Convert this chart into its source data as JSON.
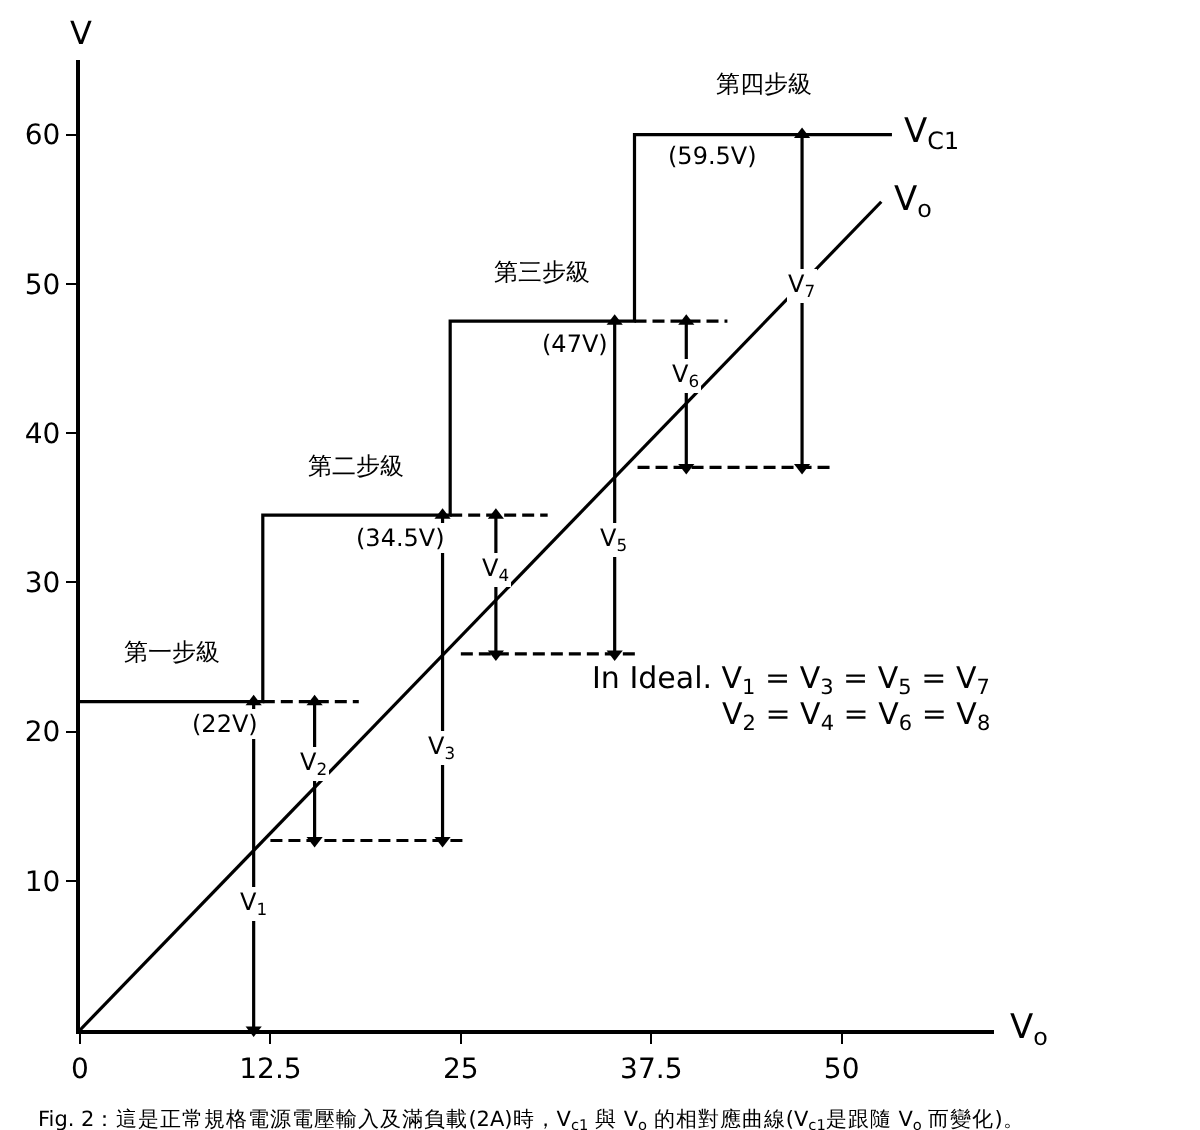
{
  "chart_data": {
    "type": "line",
    "xlabel": "V$_{o}$",
    "ylabel": "V",
    "xlim": [
      0,
      60
    ],
    "ylim": [
      0,
      65
    ],
    "xticks": [
      0,
      12.5,
      25,
      37.5,
      50
    ],
    "yticks": [
      10,
      20,
      30,
      40,
      50,
      60
    ],
    "legend": false,
    "line_style": "solid",
    "series": [
      {
        "name": "V$_{C1}$",
        "color": "#000000",
        "x": [
          0,
          12,
          12,
          24.3,
          24.3,
          36.4,
          36.4,
          53.3
        ],
        "values": [
          22,
          22,
          34.5,
          34.5,
          47.5,
          47.5,
          60,
          60
        ]
      },
      {
        "name": "V$_{o}$",
        "color": "#000000",
        "x": [
          0,
          52.6
        ],
        "values": [
          0,
          55.5
        ]
      },
      {
        "color": "#000000",
        "line_style": "dashed",
        "x": [
          12,
          18.3
        ],
        "values": [
          22,
          22
        ]
      },
      {
        "color": "#000000",
        "line_style": "dashed",
        "x": [
          12.5,
          25.3
        ],
        "values": [
          12.7,
          12.7
        ]
      },
      {
        "color": "#000000",
        "line_style": "dashed",
        "x": [
          24.3,
          30.7
        ],
        "values": [
          34.5,
          34.5
        ]
      },
      {
        "color": "#000000",
        "line_style": "dashed",
        "x": [
          25,
          36.7
        ],
        "values": [
          25.2,
          25.2
        ]
      },
      {
        "color": "#000000",
        "line_style": "dashed",
        "x": [
          36.4,
          42.5
        ],
        "values": [
          47.5,
          47.5
        ]
      },
      {
        "color": "#000000",
        "line_style": "dashed",
        "x": [
          36.6,
          49.3
        ],
        "values": [
          37.7,
          37.7
        ]
      },
      {
        "color": "#000000",
        "marker": "triangle",
        "x": [
          11.4,
          11.4
        ],
        "values": [
          22,
          0
        ]
      },
      {
        "color": "#000000",
        "marker": "triangle",
        "x": [
          15.4,
          15.4
        ],
        "values": [
          22,
          12.7
        ]
      },
      {
        "color": "#000000",
        "marker": "triangle",
        "x": [
          23.8,
          23.8
        ],
        "values": [
          34.5,
          12.7
        ]
      },
      {
        "color": "#000000",
        "marker": "triangle",
        "x": [
          27.3,
          27.3
        ],
        "values": [
          34.5,
          25.2
        ]
      },
      {
        "color": "#000000",
        "marker": "triangle",
        "x": [
          35.1,
          35.1
        ],
        "values": [
          47.5,
          25.2
        ]
      },
      {
        "color": "#000000",
        "marker": "triangle",
        "x": [
          39.8,
          39.8
        ],
        "values": [
          47.5,
          37.7
        ]
      },
      {
        "color": "#000000",
        "marker": "triangle",
        "x": [
          47.4,
          47.4
        ],
        "values": [
          60,
          37.7
        ]
      }
    ],
    "annotations": [
      {
        "text": "(22V)",
        "x": 9.5,
        "y": 22
      },
      {
        "text": "(34.5V)",
        "x": 21,
        "y": 34.5
      },
      {
        "text": "(47V)",
        "x": 32.5,
        "y": 47.5
      },
      {
        "text": "(59.5V)",
        "x": 41.5,
        "y": 60
      },
      {
        "text": "V$_{1}$",
        "x": 11.4,
        "y": 10
      },
      {
        "text": "V$_{2}$",
        "x": 15.4,
        "y": 19.5
      },
      {
        "text": "V$_{3}$",
        "x": 23.8,
        "y": 20.5
      },
      {
        "text": "V$_{4}$",
        "x": 27.3,
        "y": 32.5
      },
      {
        "text": "V$_{5}$",
        "x": 35.1,
        "y": 34.5
      },
      {
        "text": "V$_{6}$",
        "x": 39.8,
        "y": 45.5
      },
      {
        "text": "V$_{7}$",
        "x": 47.4,
        "y": 51.5
      },
      "第一步級",
      "第二步級",
      "第三步級",
      "第四步級",
      "In Ideal. V$_{1}$ = V$_{3}$ = V$_{5}$ = V$_{7}$",
      "V$_{2}$ = V$_{4}$ = V$_{6}$ = V$_{8}$",
      "Fig. 2：這是正常規格電源電壓輸入及滿負載(2A)時，V$_{c1}$ 與 V$_{o}$ 的相對應曲線(V$_{c1}$是跟隨 V$_{o}$ 而變化)。"
    ]
  }
}
